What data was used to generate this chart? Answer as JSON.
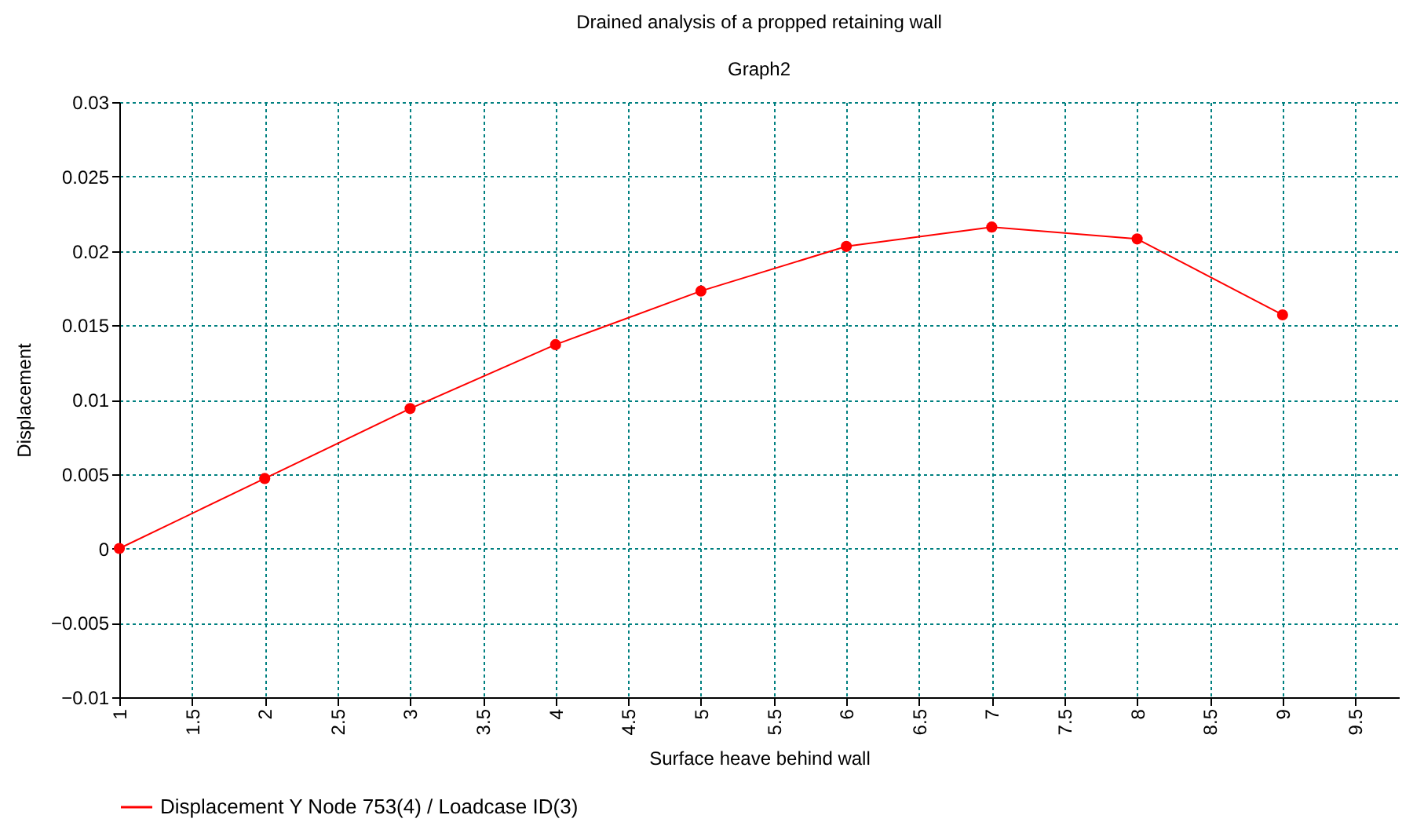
{
  "chart_data": {
    "type": "line",
    "title": "Drained analysis of a propped retaining wall",
    "subtitle": "Graph2",
    "xlabel": "Surface heave behind wall",
    "ylabel": "Displacement",
    "x": [
      1,
      2,
      3,
      4,
      5,
      6,
      7,
      8,
      9
    ],
    "series": [
      {
        "name": "Displacement Y Node 753(4) / Loadcase ID(3)",
        "color": "#ff0000",
        "values": [
          0,
          0.0047,
          0.0094,
          0.0137,
          0.0173,
          0.0203,
          0.0216,
          0.0208,
          0.0157
        ]
      }
    ],
    "xlim": [
      1,
      9.8
    ],
    "xticks": [
      1,
      1.5,
      2,
      2.5,
      3,
      3.5,
      4,
      4.5,
      5,
      5.5,
      6,
      6.5,
      7,
      7.5,
      8,
      8.5,
      9,
      9.5
    ],
    "ylim": [
      -0.01,
      0.03
    ],
    "yticks": [
      -0.01,
      -0.005,
      0,
      0.005,
      0.01,
      0.015,
      0.02,
      0.025,
      0.03
    ],
    "grid": true,
    "legend": "bottom left",
    "marker": "circle",
    "line_style": "solid"
  }
}
